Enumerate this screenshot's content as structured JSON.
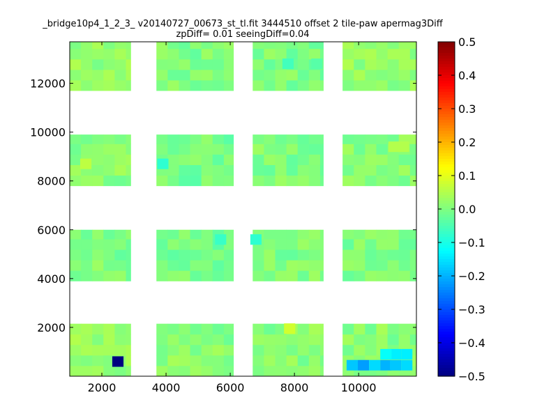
{
  "chart_data": {
    "type": "heatmap",
    "title": "_bridge10p4_1_2_3_ v20140727_00673_st_tl.fit 3444510 offset 2 tile-paw apermag3Diff",
    "subtitle": "zpDiff= 0.01 seeingDiff=0.04",
    "xlabel": "",
    "ylabel": "",
    "xlim": [
      1000,
      11800
    ],
    "ylim": [
      0,
      13700
    ],
    "x_ticks": [
      2000,
      4000,
      6000,
      8000,
      10000
    ],
    "y_ticks": [
      2000,
      4000,
      6000,
      8000,
      10000,
      12000
    ],
    "colorbar": {
      "range": [
        -0.5,
        0.5
      ],
      "ticks": [
        0.5,
        0.4,
        0.3,
        0.2,
        0.1,
        0.0,
        -0.1,
        -0.2,
        -0.3,
        -0.4,
        -0.5
      ],
      "tick_labels": [
        "0.5",
        "0.4",
        "0.3",
        "0.2",
        "0.1",
        "0.0",
        "−0.1",
        "−0.2",
        "−0.3",
        "−0.4",
        "−0.5"
      ],
      "colormap": "jet"
    },
    "cell_size": [
      350,
      430
    ],
    "background_value": 0.0,
    "grid": false,
    "blocks": [
      {
        "x": [
          1000,
          2900
        ],
        "y": [
          0,
          2150
        ],
        "value": 0.02
      },
      {
        "x": [
          3700,
          6100
        ],
        "y": [
          0,
          2150
        ],
        "value": 0.01
      },
      {
        "x": [
          6700,
          8900
        ],
        "y": [
          0,
          2150
        ],
        "value": 0.01
      },
      {
        "x": [
          9500,
          11800
        ],
        "y": [
          0,
          2150
        ],
        "value": 0.01
      },
      {
        "x": [
          1000,
          2900
        ],
        "y": [
          3900,
          6000
        ],
        "value": 0.0
      },
      {
        "x": [
          3700,
          6100
        ],
        "y": [
          3900,
          6000
        ],
        "value": -0.01
      },
      {
        "x": [
          6700,
          8900
        ],
        "y": [
          3900,
          6000
        ],
        "value": 0.0
      },
      {
        "x": [
          9500,
          11800
        ],
        "y": [
          3900,
          6000
        ],
        "value": 0.0
      },
      {
        "x": [
          1000,
          2900
        ],
        "y": [
          7800,
          9900
        ],
        "value": 0.01
      },
      {
        "x": [
          3700,
          6100
        ],
        "y": [
          7800,
          9900
        ],
        "value": -0.01
      },
      {
        "x": [
          6700,
          8900
        ],
        "y": [
          7800,
          9900
        ],
        "value": 0.0
      },
      {
        "x": [
          9500,
          11800
        ],
        "y": [
          7800,
          9900
        ],
        "value": 0.01
      },
      {
        "x": [
          1000,
          2900
        ],
        "y": [
          11700,
          13700
        ],
        "value": 0.02
      },
      {
        "x": [
          3700,
          6100
        ],
        "y": [
          11700,
          13700
        ],
        "value": 0.0
      },
      {
        "x": [
          6700,
          8900
        ],
        "y": [
          11700,
          13700
        ],
        "value": 0.0
      },
      {
        "x": [
          9500,
          11800
        ],
        "y": [
          11700,
          13700
        ],
        "value": 0.02
      }
    ],
    "notable_cells": [
      {
        "x": 2500,
        "y": 600,
        "value": -0.5
      },
      {
        "x": 9800,
        "y": 450,
        "value": -0.18
      },
      {
        "x": 10150,
        "y": 450,
        "value": -0.22
      },
      {
        "x": 10500,
        "y": 450,
        "value": -0.16
      },
      {
        "x": 10850,
        "y": 450,
        "value": -0.2
      },
      {
        "x": 11150,
        "y": 450,
        "value": -0.18
      },
      {
        "x": 11500,
        "y": 450,
        "value": -0.16
      },
      {
        "x": 11150,
        "y": 900,
        "value": -0.14
      },
      {
        "x": 11500,
        "y": 900,
        "value": -0.14
      },
      {
        "x": 10850,
        "y": 900,
        "value": -0.12
      },
      {
        "x": 7850,
        "y": 1950,
        "value": 0.08
      },
      {
        "x": 1500,
        "y": 8700,
        "value": 0.06
      },
      {
        "x": 3900,
        "y": 8700,
        "value": -0.08
      },
      {
        "x": 6800,
        "y": 5600,
        "value": -0.08
      },
      {
        "x": 5700,
        "y": 5600,
        "value": -0.07
      },
      {
        "x": 7800,
        "y": 12800,
        "value": -0.06
      },
      {
        "x": 8700,
        "y": 12800,
        "value": -0.04
      },
      {
        "x": 11400,
        "y": 9400,
        "value": 0.05
      },
      {
        "x": 11100,
        "y": 9400,
        "value": 0.05
      }
    ]
  }
}
